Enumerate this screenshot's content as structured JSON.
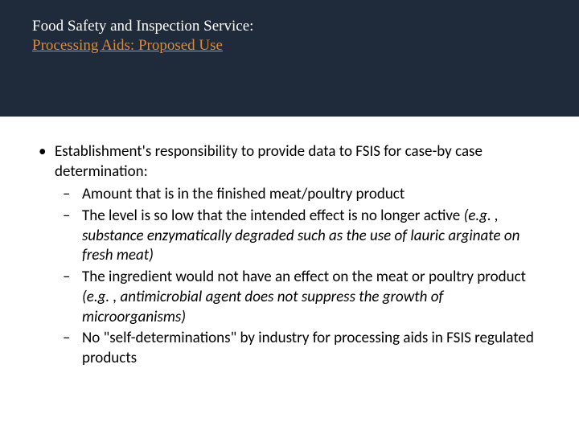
{
  "colors": {
    "header_bg": "#1f2a3a",
    "title_color": "#ffffff",
    "subtitle_color": "#d98b3f",
    "text_color": "#000000",
    "body_bg": "#ffffff"
  },
  "header": {
    "title": "Food Safety and Inspection Service:",
    "subtitle": "Processing Aids: Proposed Use"
  },
  "bullet": {
    "main": "Establishment's responsibility to provide data to FSIS for case-by case determination:",
    "subs": [
      {
        "plain": "Amount that is in the finished meat/poultry product",
        "italic": ""
      },
      {
        "plain": "The level is so low that the intended effect is no longer active ",
        "italic": "(e.g. , substance enzymatically degraded such as the use of lauric arginate on fresh meat)"
      },
      {
        "plain": "The ingredient would not have an effect on the meat or poultry product ",
        "italic": "(e.g. , antimicrobial agent does not suppress the growth of microorganisms)"
      },
      {
        "plain": "No \"self-determinations\" by industry for processing aids in FSIS regulated products",
        "italic": ""
      }
    ]
  },
  "typography": {
    "header_font": "Times New Roman",
    "body_font": "Calibri",
    "header_fontsize_pt": 14,
    "body_fontsize_pt": 14
  }
}
